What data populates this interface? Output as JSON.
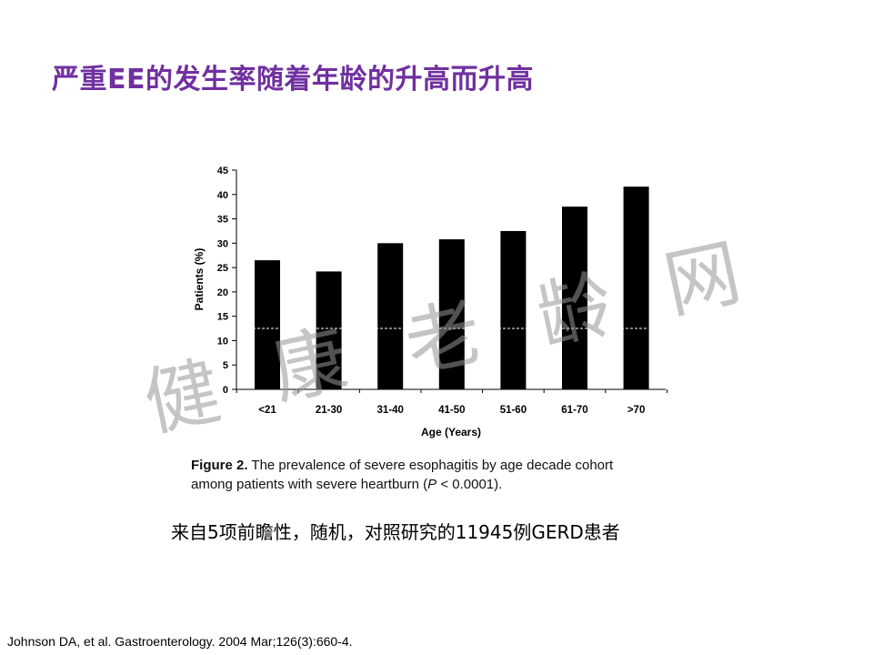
{
  "slide": {
    "title": "严重EE的发生率随着年龄的升高而升高",
    "subtitle": "来自5项前瞻性，随机，对照研究的11945例GERD患者",
    "reference": "Johnson DA, et al. Gastroenterology. 2004 Mar;126(3):660-4."
  },
  "caption": {
    "figure_label": "Figure 2.",
    "text_line1": "The prevalence of severe esophagitis by age decade cohort",
    "text_line2_start": "among patients with severe heartburn (",
    "p_symbol": "P",
    "text_line2_end": " < 0.0001)."
  },
  "watermark": {
    "chars": [
      "健",
      "康",
      "老",
      "龄",
      "网"
    ]
  },
  "chart_data": {
    "type": "bar",
    "categories": [
      "<21",
      "21-30",
      "31-40",
      "41-50",
      "51-60",
      "61-70",
      ">70"
    ],
    "values": [
      26.5,
      24.2,
      30.0,
      30.8,
      32.5,
      37.5,
      41.6
    ],
    "xlabel": "Age (Years)",
    "ylabel": "Patients (%)",
    "ylim": [
      0,
      45
    ],
    "yticks": [
      0,
      5,
      10,
      15,
      20,
      25,
      30,
      35,
      40,
      45
    ],
    "reference_line": 12.5,
    "bar_color": "#000000",
    "grid": false
  }
}
